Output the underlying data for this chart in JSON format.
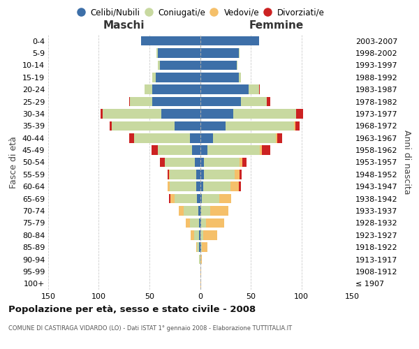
{
  "age_groups": [
    "100+",
    "95-99",
    "90-94",
    "85-89",
    "80-84",
    "75-79",
    "70-74",
    "65-69",
    "60-64",
    "55-59",
    "50-54",
    "45-49",
    "40-44",
    "35-39",
    "30-34",
    "25-29",
    "20-24",
    "15-19",
    "10-14",
    "5-9",
    "0-4"
  ],
  "birth_years": [
    "≤ 1907",
    "1908-1912",
    "1913-1917",
    "1918-1922",
    "1923-1927",
    "1928-1932",
    "1933-1937",
    "1938-1942",
    "1943-1947",
    "1948-1952",
    "1953-1957",
    "1958-1962",
    "1963-1967",
    "1968-1972",
    "1973-1977",
    "1978-1982",
    "1983-1987",
    "1988-1992",
    "1993-1997",
    "1998-2002",
    "2003-2007"
  ],
  "colors": {
    "celibe": "#3d6fa8",
    "coniugato": "#c8d9a0",
    "vedovo": "#f5c06a",
    "divorziato": "#cc2222"
  },
  "maschi": {
    "celibe": [
      0,
      0,
      0,
      1,
      1,
      1,
      2,
      3,
      4,
      4,
      5,
      8,
      10,
      25,
      38,
      47,
      47,
      44,
      40,
      42,
      58
    ],
    "coniugato": [
      0,
      0,
      1,
      2,
      5,
      9,
      14,
      22,
      26,
      26,
      30,
      34,
      55,
      62,
      58,
      22,
      8,
      3,
      2,
      1,
      0
    ],
    "vedovo": [
      0,
      0,
      0,
      1,
      3,
      4,
      5,
      4,
      2,
      1,
      0,
      0,
      0,
      0,
      0,
      0,
      0,
      0,
      0,
      0,
      0
    ],
    "divorziato": [
      0,
      0,
      0,
      0,
      0,
      0,
      0,
      2,
      0,
      1,
      5,
      6,
      5,
      2,
      2,
      1,
      0,
      0,
      0,
      0,
      0
    ]
  },
  "femmine": {
    "celibe": [
      0,
      0,
      0,
      1,
      0,
      1,
      1,
      2,
      3,
      4,
      4,
      7,
      13,
      25,
      33,
      40,
      48,
      38,
      36,
      38,
      58
    ],
    "coniugato": [
      0,
      0,
      0,
      1,
      3,
      5,
      9,
      17,
      27,
      30,
      35,
      52,
      62,
      68,
      62,
      26,
      10,
      2,
      1,
      1,
      0
    ],
    "vedovo": [
      1,
      1,
      2,
      5,
      14,
      18,
      18,
      12,
      8,
      5,
      3,
      2,
      1,
      1,
      0,
      0,
      0,
      0,
      0,
      0,
      0
    ],
    "divorziato": [
      0,
      0,
      0,
      0,
      0,
      0,
      0,
      0,
      2,
      2,
      4,
      8,
      5,
      4,
      7,
      3,
      1,
      0,
      0,
      0,
      0
    ]
  },
  "title": "Popolazione per età, sesso e stato civile - 2008",
  "subtitle": "COMUNE DI CASTIRAGA VIDARDO (LO) - Dati ISTAT 1° gennaio 2008 - Elaborazione TUTTITALIA.IT",
  "header_left": "Maschi",
  "header_right": "Femmine",
  "ylabel_left": "Fasce di età",
  "ylabel_right": "Anni di nascita",
  "xlim": 150,
  "legend_labels": [
    "Celibi/Nubili",
    "Coniugati/e",
    "Vedovi/e",
    "Divorziati/e"
  ],
  "background_color": "#ffffff",
  "grid_color": "#cccccc"
}
